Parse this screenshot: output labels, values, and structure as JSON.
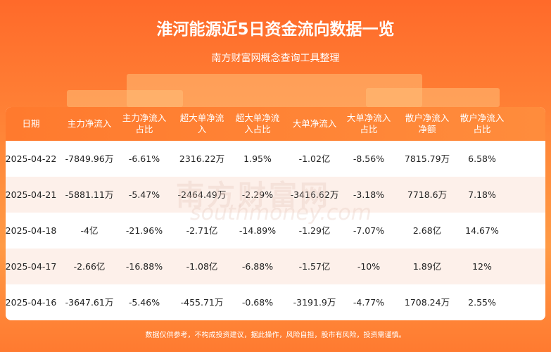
{
  "header": {
    "title": "淮河能源近5日资金流向数据一览",
    "subtitle": "南方财富网概念查询工具整理"
  },
  "watermark": {
    "cn": "南方财富网",
    "en": "southmoney.com"
  },
  "table": {
    "headers": [
      [
        "日期"
      ],
      [
        "主力净流入"
      ],
      [
        "主力净流入",
        "占比"
      ],
      [
        "超大单净流",
        "入"
      ],
      [
        "超大单净流",
        "入占比"
      ],
      [
        "大单净流入"
      ],
      [
        "大单净流入",
        "占比"
      ],
      [
        "散户净流入",
        "净额"
      ],
      [
        "散户净流入",
        "占比"
      ]
    ],
    "rows": [
      [
        "2025-04-22",
        "-7849.96万",
        "-6.61%",
        "2316.22万",
        "1.95%",
        "-1.02亿",
        "-8.56%",
        "7815.79万",
        "6.58%"
      ],
      [
        "2025-04-21",
        "-5881.11万",
        "-5.47%",
        "-2464.49万",
        "-2.29%",
        "-3416.62万",
        "-3.18%",
        "7718.6万",
        "7.18%"
      ],
      [
        "2025-04-18",
        "-4亿",
        "-21.96%",
        "-2.71亿",
        "-14.89%",
        "-1.29亿",
        "-7.07%",
        "2.68亿",
        "14.67%"
      ],
      [
        "2025-04-17",
        "-2.66亿",
        "-16.88%",
        "-1.08亿",
        "-6.88%",
        "-1.57亿",
        "-10%",
        "1.89亿",
        "12%"
      ],
      [
        "2025-04-16",
        "-3647.61万",
        "-5.46%",
        "-455.71万",
        "-0.68%",
        "-3191.9万",
        "-4.77%",
        "1708.24万",
        "2.55%"
      ]
    ]
  },
  "footer": {
    "text": "数据仅供参考，不构成投资建议，据此操作，风险自担，股市有风险，投资需谨慎。"
  }
}
